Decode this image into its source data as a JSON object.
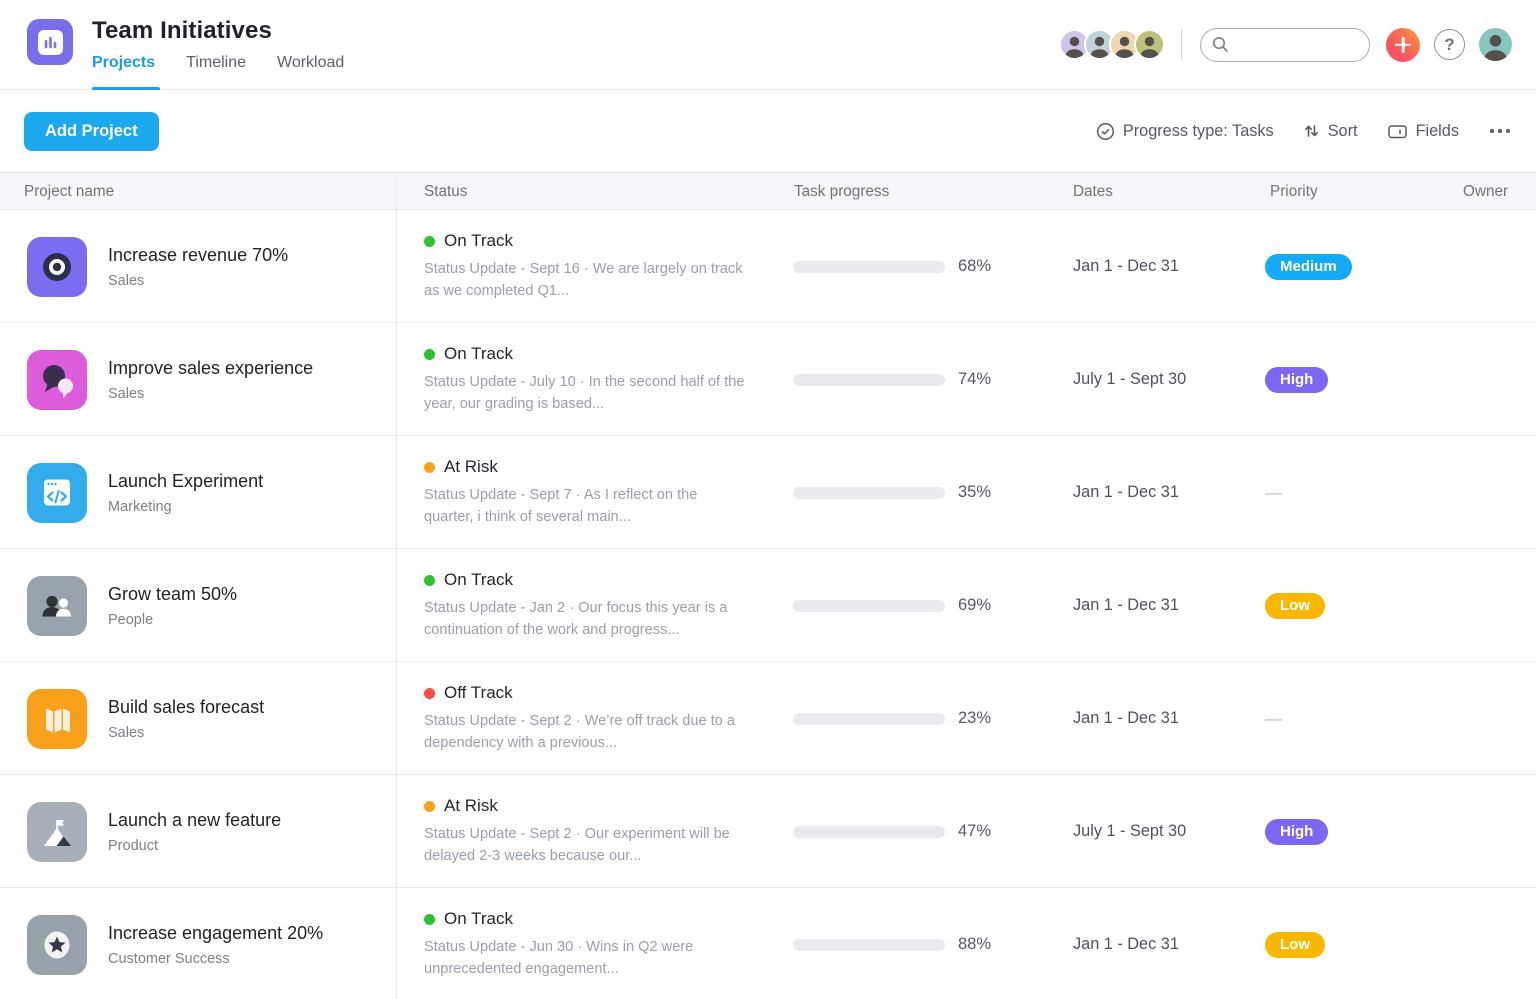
{
  "header": {
    "app_title": "Team Initiatives",
    "app_icon": "portfolio-bar-chart-icon",
    "tabs": [
      {
        "label": "Projects",
        "active": true
      },
      {
        "label": "Timeline",
        "active": false
      },
      {
        "label": "Workload",
        "active": false
      }
    ],
    "active_tab_color": "#17a3ec",
    "member_avatar_colors": [
      "#cdc4ec",
      "#c2d2da",
      "#f0d6b2",
      "#bdc27b"
    ],
    "search": {
      "value": "",
      "placeholder": ""
    },
    "help_label": "?",
    "profile_avatar_color": "#86c6bf"
  },
  "toolbar": {
    "add_project_label": "Add Project",
    "progress_type_label": "Progress type: Tasks",
    "sort_label": "Sort",
    "fields_label": "Fields"
  },
  "table": {
    "columns": [
      "Project name",
      "Status",
      "Task progress",
      "Dates",
      "Priority",
      "Owner"
    ],
    "progress_fill_color": "#4fe0c1",
    "status_colors": {
      "On Track": "#2ec12e",
      "At Risk": "#f9a218",
      "Off Track": "#fb4a3e"
    },
    "priority_colors": {
      "Medium": "#14aaf5",
      "High": "#7d66f2",
      "Low": "#f8b700"
    },
    "rows": [
      {
        "name": "Increase revenue 70%",
        "category": "Sales",
        "icon": "target-icon",
        "icon_bg": "#7b6cf0",
        "status": "On Track",
        "status_color": "#2ec12e",
        "status_update": "Status Update - Sept 16 · We are largely on track as we completed Q1...",
        "progress_pct": 68,
        "progress_label": "68%",
        "dates": "Jan 1 - Dec 31",
        "priority": "Medium",
        "priority_color": "#14aaf5",
        "owner_avatar_bg": "#c9b7ea"
      },
      {
        "name": "Improve sales experience",
        "category": "Sales",
        "icon": "chat-bubbles-icon",
        "icon_bg": "#dc5cdc",
        "status": "On Track",
        "status_color": "#2ec12e",
        "status_update": "Status Update - July 10 · In the second half of the year, our grading is based...",
        "progress_pct": 74,
        "progress_label": "74%",
        "dates": "July 1 - Sept 30",
        "priority": "High",
        "priority_color": "#7d66f2",
        "owner_avatar_bg": "#a4c8cd"
      },
      {
        "name": "Launch Experiment",
        "category": "Marketing",
        "icon": "code-window-icon",
        "icon_bg": "#33acec",
        "status": "At Risk",
        "status_color": "#f9a218",
        "status_update": "Status Update - Sept 7 · As I reflect on the quarter, i think of several main...",
        "progress_pct": 35,
        "progress_label": "35%",
        "dates": "Jan 1 - Dec 31",
        "priority": "—",
        "priority_color": null,
        "owner_avatar_bg": "#a0c8cb"
      },
      {
        "name": "Grow team 50%",
        "category": "People",
        "icon": "people-icon",
        "icon_bg": "#9aa3ab",
        "status": "On Track",
        "status_color": "#2ec12e",
        "status_update": "Status Update - Jan 2 · Our focus this year is a continuation of the work and progress...",
        "progress_pct": 69,
        "progress_label": "69%",
        "dates": "Jan 1 - Dec 31",
        "priority": "Low",
        "priority_color": "#f8b700",
        "owner_avatar_bg": "#c5bd7e"
      },
      {
        "name": "Build sales forecast",
        "category": "Sales",
        "icon": "map-icon",
        "icon_bg": "#f9a01b",
        "status": "Off Track",
        "status_color": "#fb4a3e",
        "status_update": "Status Update - Sept 2 · We’re off track due to a dependency with a previous...",
        "progress_pct": 23,
        "progress_label": "23%",
        "dates": "Jan 1 - Dec 31",
        "priority": "—",
        "priority_color": null,
        "owner_avatar_bg": "#e9e2d6"
      },
      {
        "name": "Launch a new feature",
        "category": "Product",
        "icon": "mountain-flag-icon",
        "icon_bg": "#a8afb8",
        "status": "At Risk",
        "status_color": "#f9a218",
        "status_update": "Status Update - Sept 2 · Our experiment will be delayed 2-3 weeks because our...",
        "progress_pct": 47,
        "progress_label": "47%",
        "dates": "July 1 - Sept 30",
        "priority": "High",
        "priority_color": "#7d66f2",
        "owner_avatar_bg": "#a4c8cd"
      },
      {
        "name": "Increase engagement 20%",
        "category": "Customer Success",
        "icon": "star-icon",
        "icon_bg": "#99a2ab",
        "status": "On Track",
        "status_color": "#2ec12e",
        "status_update": "Status Update - Jun 30 · Wins in Q2 were unprecedented engagement...",
        "progress_pct": 88,
        "progress_label": "88%",
        "dates": "Jan 1 - Dec 31",
        "priority": "Low",
        "priority_color": "#f8b700",
        "owner_avatar_bg": "#e6e0d2"
      }
    ]
  }
}
